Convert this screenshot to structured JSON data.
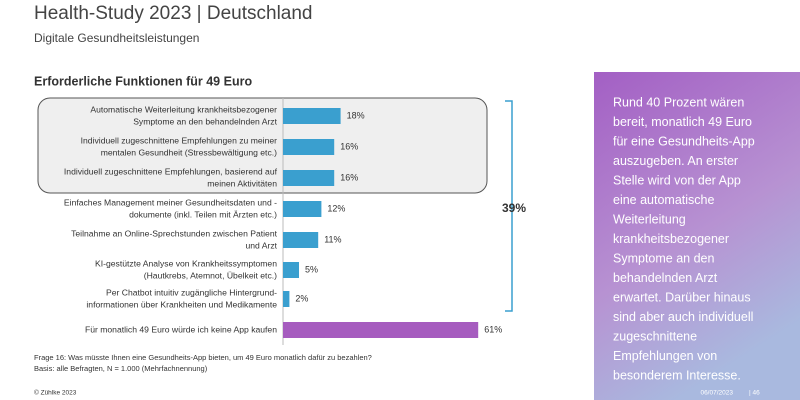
{
  "chart_data": {
    "type": "bar",
    "title": "Health-Study 2023 | Deutschland",
    "subtitle": "Digitale Gesundheitsleistungen",
    "chart_title": "Erforderliche Funktionen für 49 Euro",
    "categories": [
      [
        "Automatische Weiterleitung krankheitsbezogener",
        "Symptome an den behandelnden Arzt"
      ],
      [
        "Individuell zugeschnittene Empfehlungen zu meiner",
        "mentalen Gesundheit (Stressbewältigung etc.)"
      ],
      [
        "Individuell zugeschnittene Empfehlungen, basierend auf",
        "meinen Aktivitäten"
      ],
      [
        "Einfaches Management meiner Gesundheitsdaten und -",
        "dokumente (inkl. Teilen mit Ärzten etc.)"
      ],
      [
        "Teilnahme an Online-Sprechstunden zwischen Patient",
        "und Arzt"
      ],
      [
        "KI-gestützte Analyse von Krankheitssymptomen",
        "(Hautkrebs, Atemnot, Übelkeit etc.)"
      ],
      [
        "Per Chatbot intuitiv zugängliche Hintergrund-",
        "informationen über Krankheiten und Medikamente"
      ],
      [
        "Für monatlich 49 Euro würde ich keine App kaufen"
      ]
    ],
    "values": [
      18,
      16,
      16,
      12,
      11,
      5,
      2,
      61
    ],
    "value_labels": [
      "18%",
      "16%",
      "16%",
      "12%",
      "11%",
      "5%",
      "2%",
      "61%"
    ],
    "colors": [
      "#3a9fcf",
      "#3a9fcf",
      "#3a9fcf",
      "#3a9fcf",
      "#3a9fcf",
      "#3a9fcf",
      "#3a9fcf",
      "#a65cbf"
    ],
    "annotation": "39%",
    "footnotes": [
      "Frage 16: Was müsste Ihnen eine Gesundheits-App bieten, um 49 Euro monatlich dafür zu bezahlen?",
      "Basis: alle Befragten, N = 1.000 (Mehrfachnennung)"
    ]
  },
  "sidebar": {
    "lines": [
      "Rund 40 Prozent wären",
      "bereit, monatlich 49 Euro",
      "für eine Gesundheits-App",
      "auszugeben. An erster",
      "Stelle wird von der App",
      "eine automatische",
      "Weiterleitung",
      "krankheitsbezogener",
      "Symptome an den",
      "behandelnden Arzt",
      "erwartet. Darüber hinaus",
      "sind aber auch individuell",
      "zugeschnittene",
      "Empfehlungen von",
      "besonderem Interesse."
    ]
  },
  "footer": {
    "copyright": "© Zühlke  2023",
    "date": "06/07/2023",
    "page": "| 46"
  }
}
